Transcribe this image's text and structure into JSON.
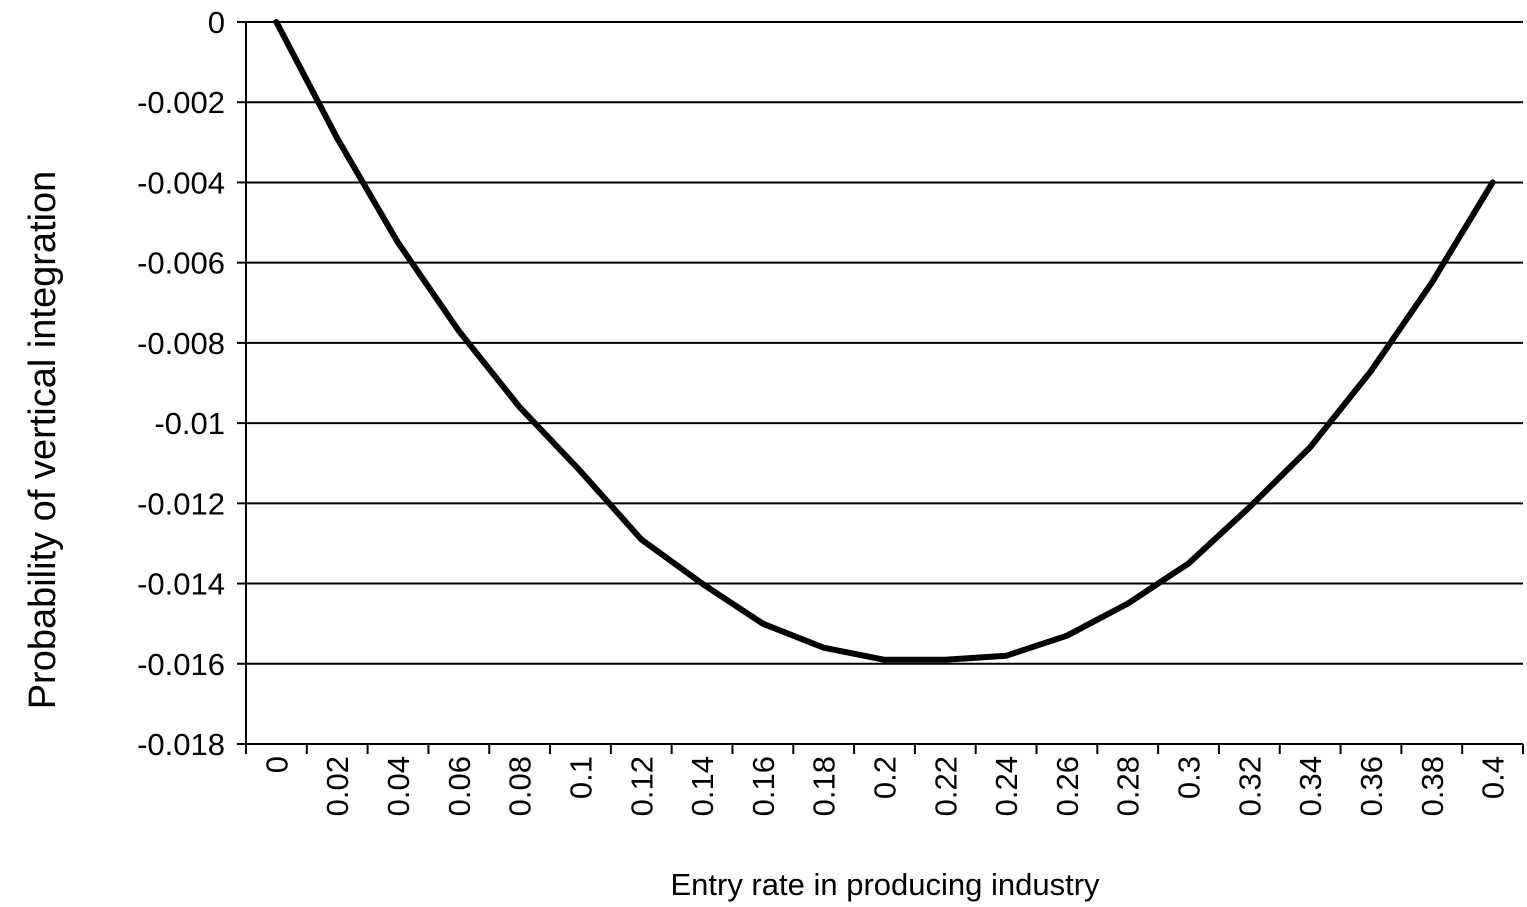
{
  "chart_data": {
    "type": "line",
    "title": "",
    "xlabel": "Entry rate in producing industry",
    "ylabel": "Probability of vertical integration",
    "xlim": [
      0,
      0.4
    ],
    "ylim": [
      -0.018,
      0
    ],
    "x_ticks": [
      "0",
      "0.02",
      "0.04",
      "0.06",
      "0.08",
      "0.1",
      "0.12",
      "0.14",
      "0.16",
      "0.18",
      "0.2",
      "0.22",
      "0.24",
      "0.26",
      "0.28",
      "0.3",
      "0.32",
      "0.34",
      "0.36",
      "0.38",
      "0.4"
    ],
    "y_ticks": [
      "0",
      "-0.002",
      "-0.004",
      "-0.006",
      "-0.008",
      "-0.01",
      "-0.012",
      "-0.014",
      "-0.016",
      "-0.018"
    ],
    "grid": "horizontal",
    "legend": "none",
    "line_color": "#000000",
    "series": [
      {
        "x": [
          0,
          0.02,
          0.04,
          0.06,
          0.08,
          0.1,
          0.12,
          0.14,
          0.16,
          0.18,
          0.2,
          0.22,
          0.24,
          0.26,
          0.28,
          0.3,
          0.32,
          0.34,
          0.36,
          0.38,
          0.4
        ],
        "values": [
          0,
          -0.0029,
          -0.0055,
          -0.0077,
          -0.0096,
          -0.0112,
          -0.0129,
          -0.014,
          -0.015,
          -0.0156,
          -0.0159,
          -0.0159,
          -0.0158,
          -0.0153,
          -0.0145,
          -0.0135,
          -0.0121,
          -0.0106,
          -0.0087,
          -0.0065,
          -0.004
        ]
      }
    ]
  }
}
